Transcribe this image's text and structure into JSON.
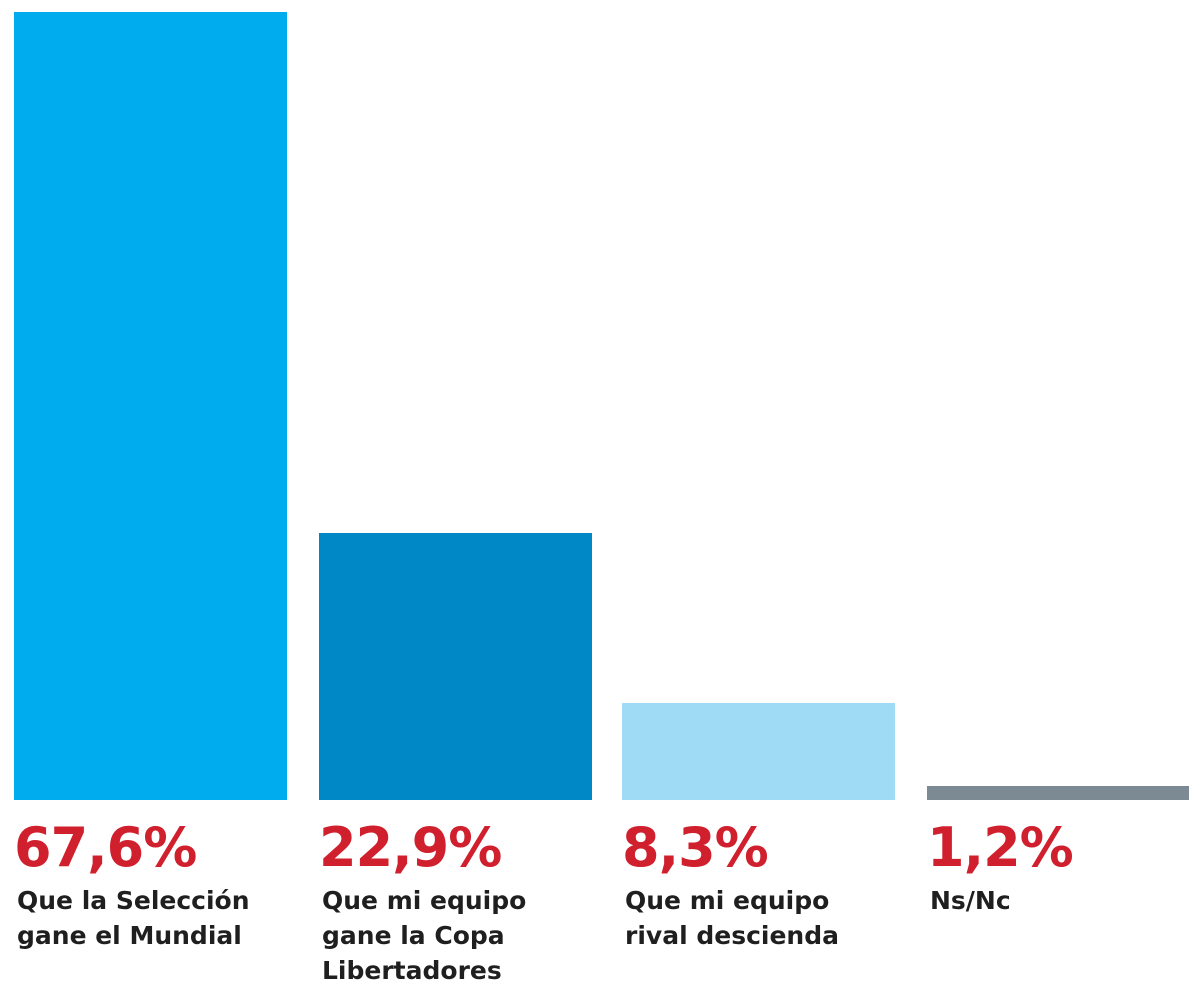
{
  "chart_data": {
    "type": "bar",
    "title": "",
    "xlabel": "",
    "ylabel": "",
    "ylim": [
      0,
      67.6
    ],
    "grid": false,
    "legend": "none",
    "categories": [
      [
        "Que la Selección",
        "gane el Mundial"
      ],
      [
        "Que mi equipo",
        "gane la Copa",
        "Libertadores"
      ],
      [
        "Que mi equipo",
        "rival descienda"
      ],
      [
        "Ns/Nc"
      ]
    ],
    "values": [
      67.6,
      22.9,
      8.3,
      1.2
    ],
    "value_labels": [
      "67,6%",
      "22,9%",
      "8,3%",
      "1,2%"
    ],
    "colors": [
      "#00acee",
      "#0087c6",
      "#a0dbf5",
      "#7c8b93"
    ],
    "value_label_color": "#d0202e"
  }
}
